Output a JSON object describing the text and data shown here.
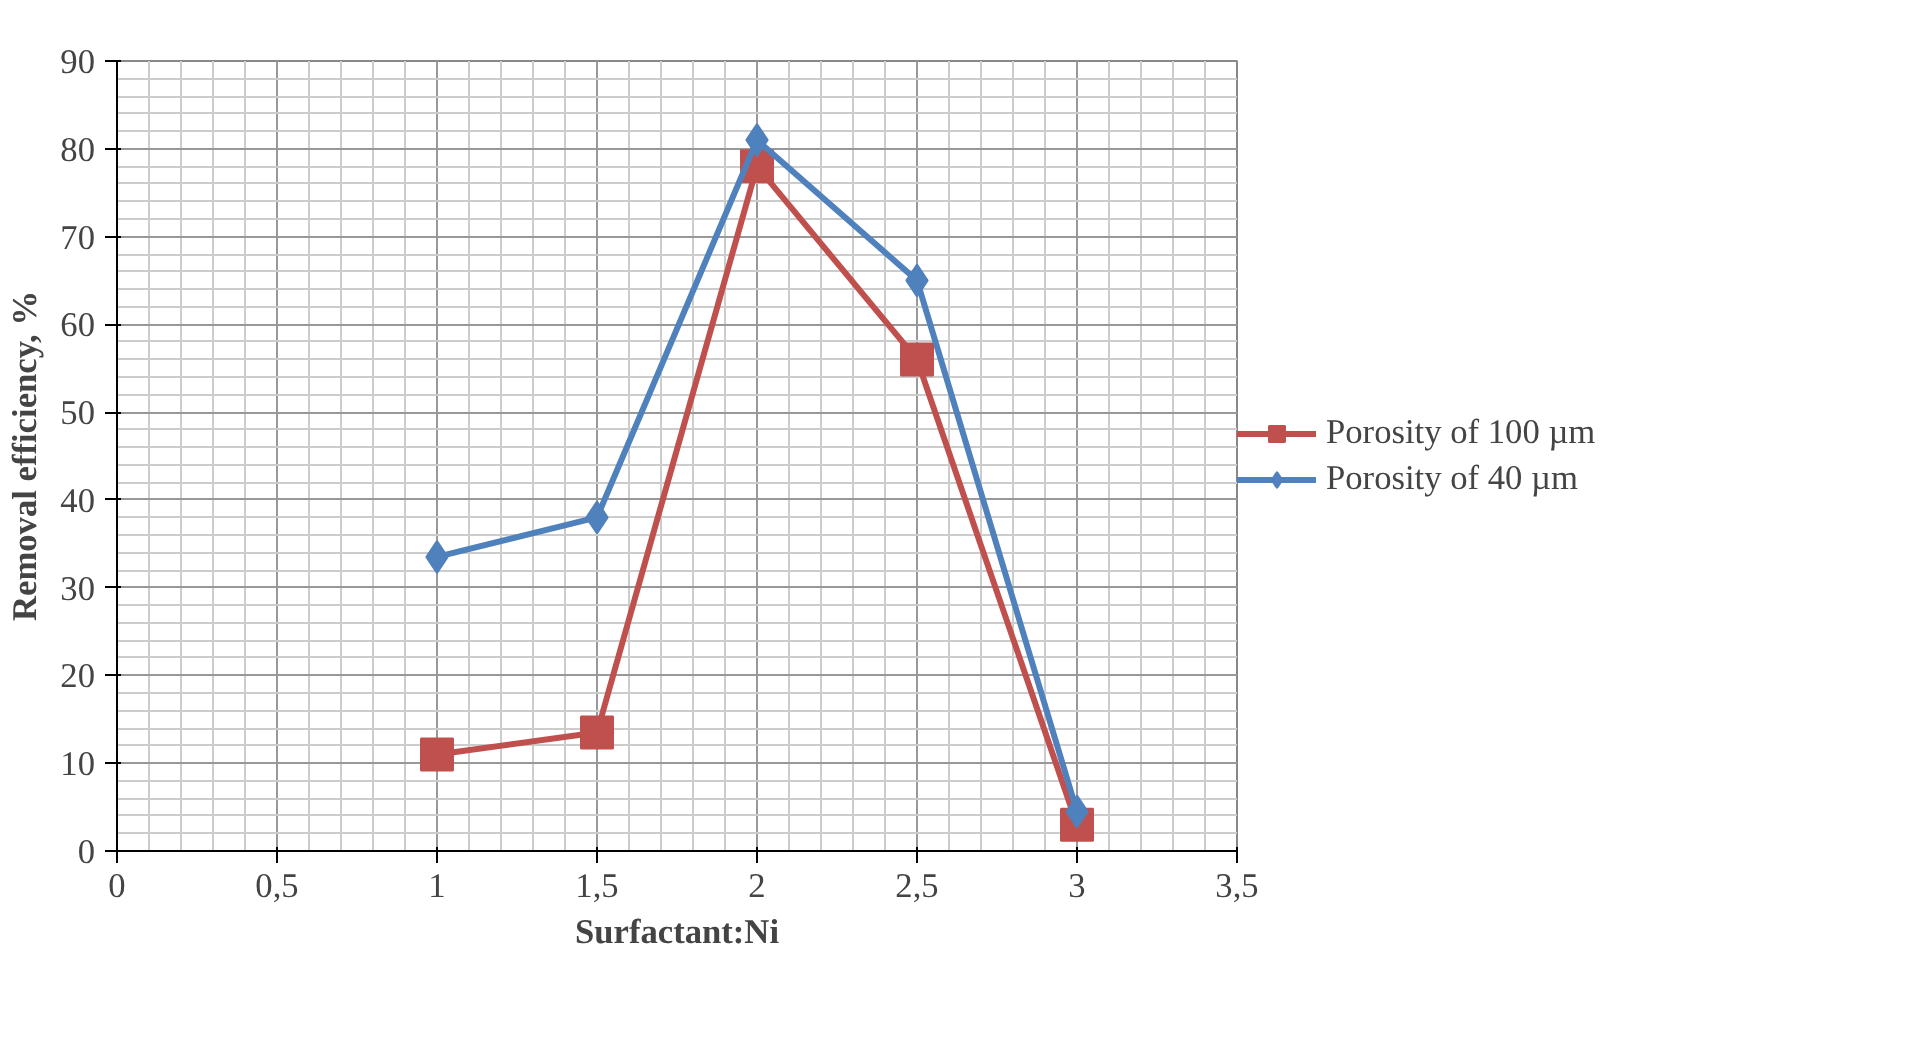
{
  "chart_data": {
    "type": "line",
    "xlabel": "Surfactant:Ni",
    "ylabel": "Removal efficiency, %",
    "x": [
      1,
      1.5,
      2,
      2.5,
      3
    ],
    "series": [
      {
        "name": "Porosity of 100 µm",
        "color": "#c0504d",
        "marker": "square",
        "values": [
          11,
          13.5,
          78,
          56,
          3
        ]
      },
      {
        "name": "Porosity of 40 µm",
        "color": "#4f81bd",
        "marker": "diamond",
        "values": [
          33.5,
          38,
          81,
          65,
          4.5
        ]
      }
    ],
    "xlim": [
      0,
      3.5
    ],
    "ylim": [
      0,
      90
    ],
    "xticks": [
      0,
      {
        "value": 0.5,
        "label": "0,5"
      },
      1,
      {
        "value": 1.5,
        "label": "1,5"
      },
      2,
      {
        "value": 2.5,
        "label": "2,5"
      },
      3,
      {
        "value": 3.5,
        "label": "3,5"
      }
    ],
    "yticks": [
      0,
      10,
      20,
      30,
      40,
      50,
      60,
      70,
      80,
      90
    ],
    "grid": true,
    "legend": "right"
  }
}
